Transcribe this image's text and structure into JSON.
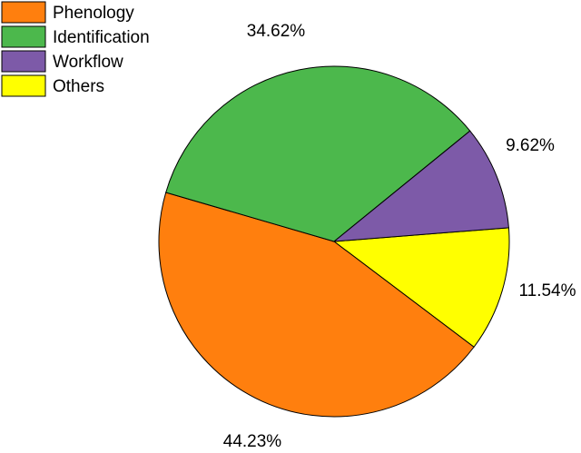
{
  "chart_data": {
    "type": "pie",
    "title": "",
    "legend_position": "top-left",
    "slices": [
      {
        "name": "Phenology",
        "value": 44.23,
        "label": "44.23%",
        "color": "#ff7f0e"
      },
      {
        "name": "Identification",
        "value": 34.62,
        "label": "34.62%",
        "color": "#4cb84c"
      },
      {
        "name": "Workflow",
        "value": 9.62,
        "label": "9.62%",
        "color": "#7d5aa8"
      },
      {
        "name": "Others",
        "value": 11.54,
        "label": "11.54%",
        "color": "#ffff00"
      }
    ]
  }
}
